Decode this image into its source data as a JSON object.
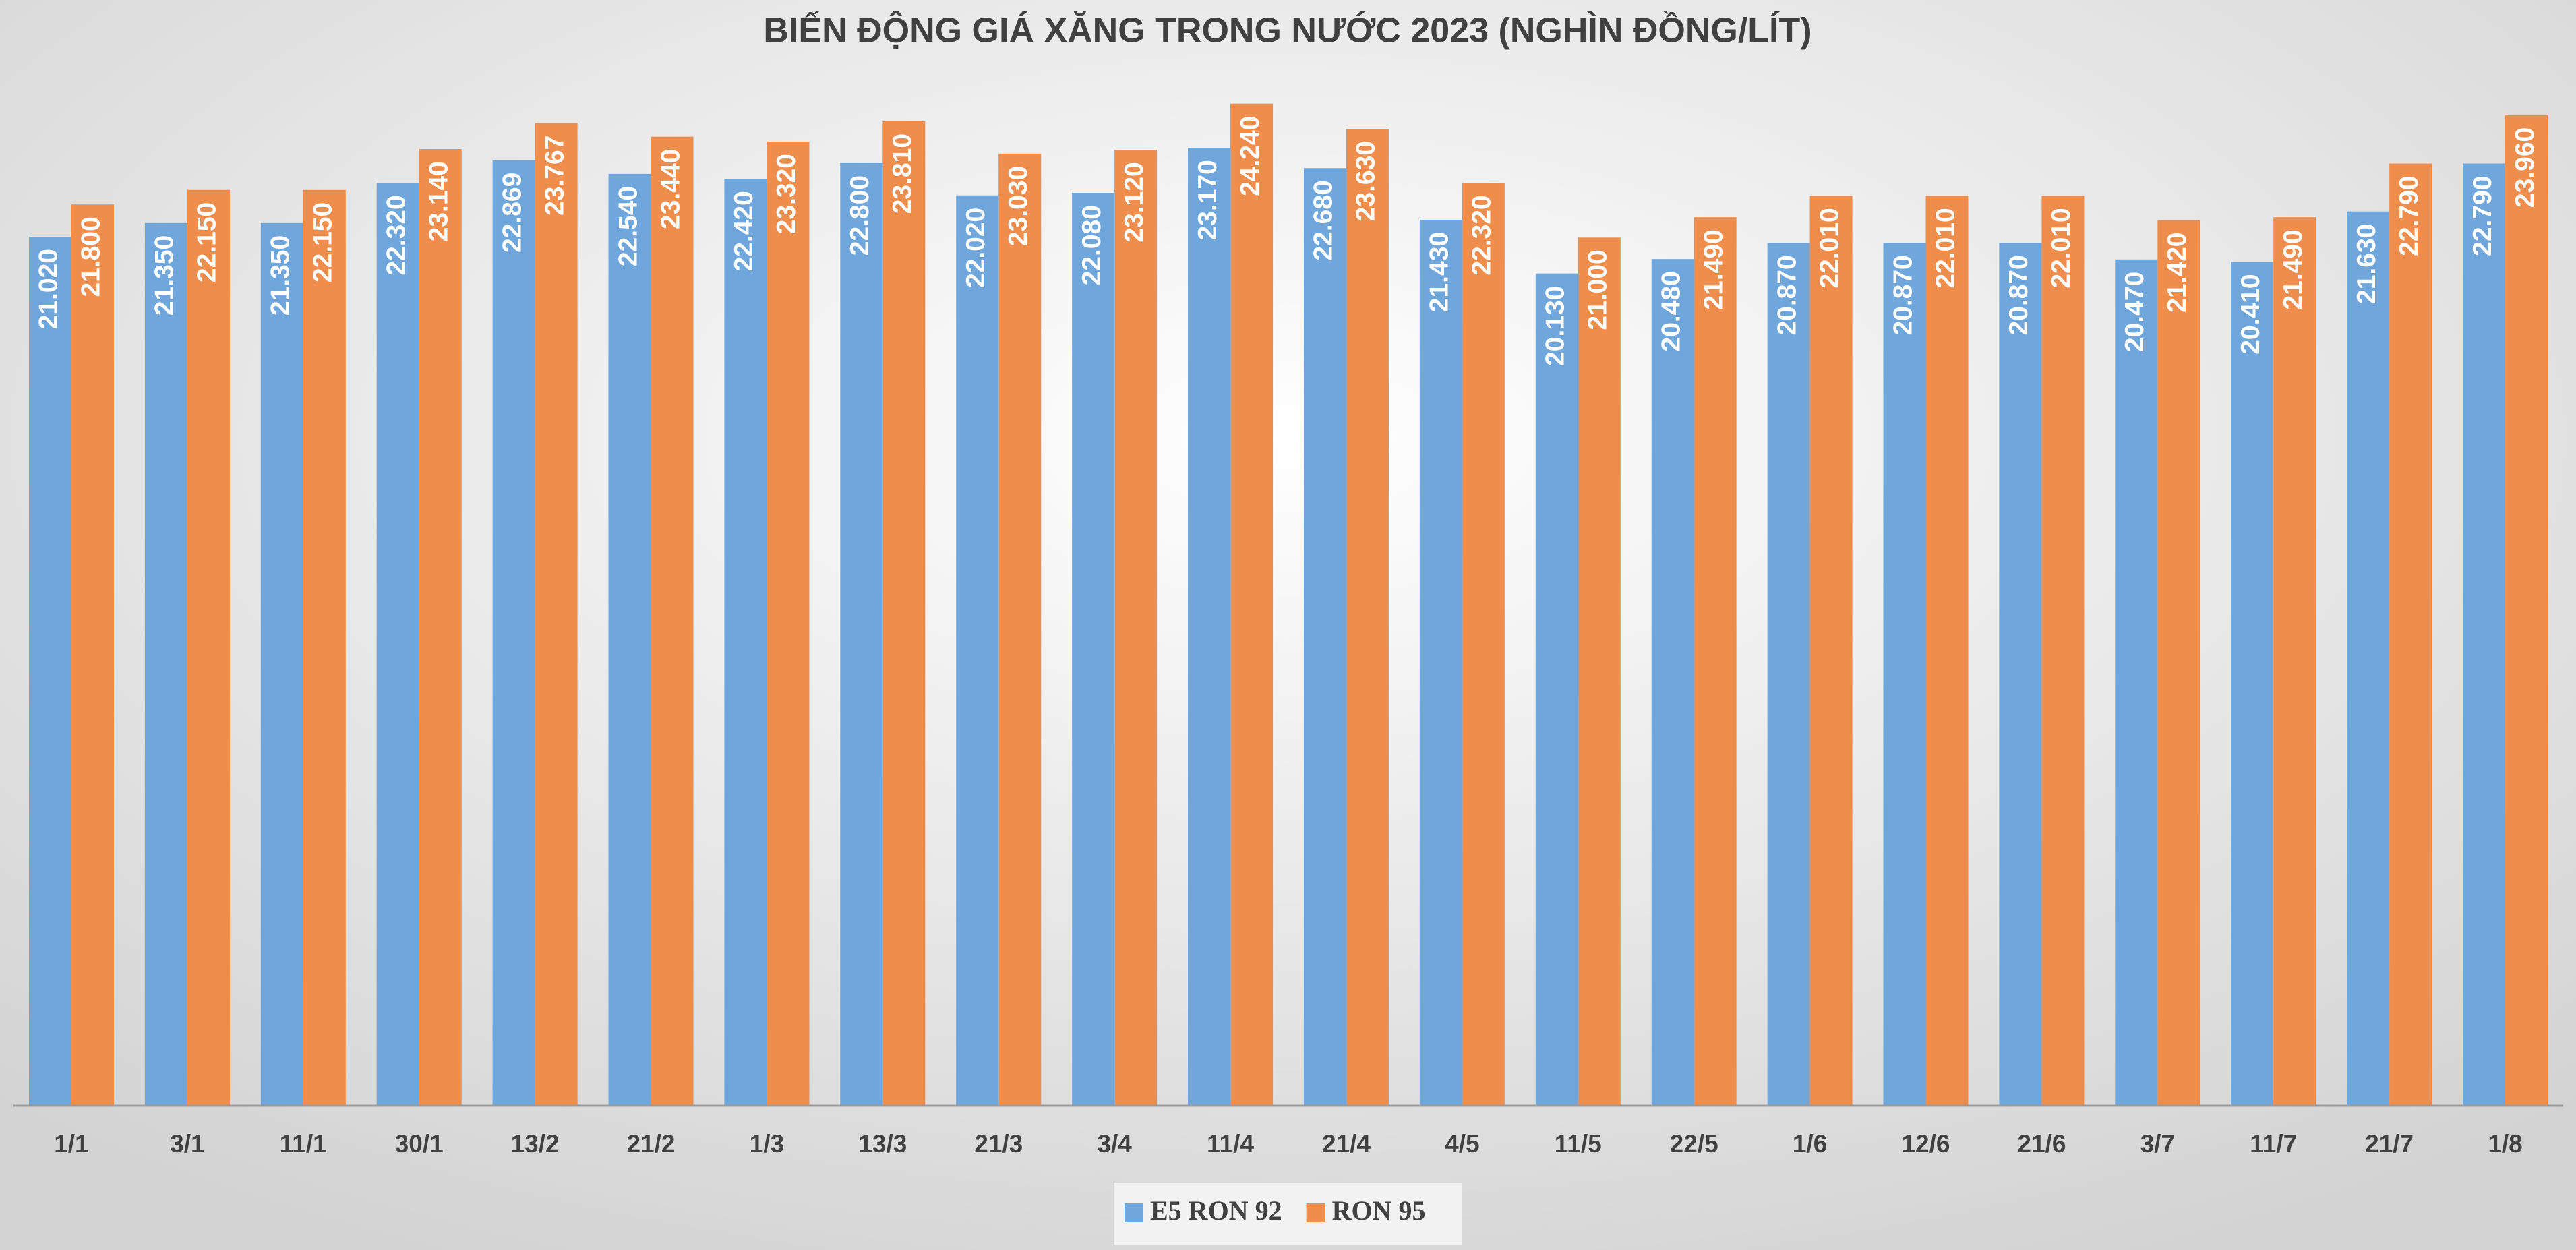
{
  "chart_data": {
    "type": "bar",
    "title": "BIẾN ĐỘNG GIÁ XĂNG TRONG NƯỚC 2023 (NGHÌN ĐỒNG/LÍT)",
    "categories": [
      "1/1",
      "3/1",
      "11/1",
      "30/1",
      "13/2",
      "21/2",
      "1/3",
      "13/3",
      "21/3",
      "3/4",
      "11/4",
      "21/4",
      "4/5",
      "11/5",
      "22/5",
      "1/6",
      "12/6",
      "21/6",
      "3/7",
      "11/7",
      "21/7",
      "1/8"
    ],
    "series": [
      {
        "name": "E5 RON 92",
        "color": "#6fa6db",
        "values": [
          21.02,
          21.35,
          21.35,
          22.32,
          22.869,
          22.54,
          22.42,
          22.8,
          22.02,
          22.08,
          23.17,
          22.68,
          21.43,
          20.13,
          20.48,
          20.87,
          20.87,
          20.87,
          20.47,
          20.41,
          21.63,
          22.79
        ],
        "value_labels": [
          "21.020",
          "21.350",
          "21.350",
          "22.320",
          "22.869",
          "22.540",
          "22.420",
          "22.800",
          "22.020",
          "22.080",
          "23.170",
          "22.680",
          "21.430",
          "20.130",
          "20.480",
          "20.870",
          "20.870",
          "20.870",
          "20.470",
          "20.410",
          "21.630",
          "22.790"
        ]
      },
      {
        "name": "RON 95",
        "color": "#ee8d4c",
        "values": [
          21.8,
          22.15,
          22.15,
          23.14,
          23.767,
          23.44,
          23.32,
          23.81,
          23.03,
          23.12,
          24.24,
          23.63,
          22.32,
          21.0,
          21.49,
          22.01,
          22.01,
          22.01,
          21.42,
          21.49,
          22.79,
          23.96
        ],
        "value_labels": [
          "21.800",
          "22.150",
          "22.150",
          "23.140",
          "23.767",
          "23.440",
          "23.320",
          "23.810",
          "23.030",
          "23.120",
          "24.240",
          "23.630",
          "22.320",
          "21.000",
          "21.490",
          "22.010",
          "22.010",
          "22.010",
          "21.420",
          "21.490",
          "22.790",
          "23.960"
        ]
      }
    ],
    "ylim": [
      0,
      25
    ]
  }
}
